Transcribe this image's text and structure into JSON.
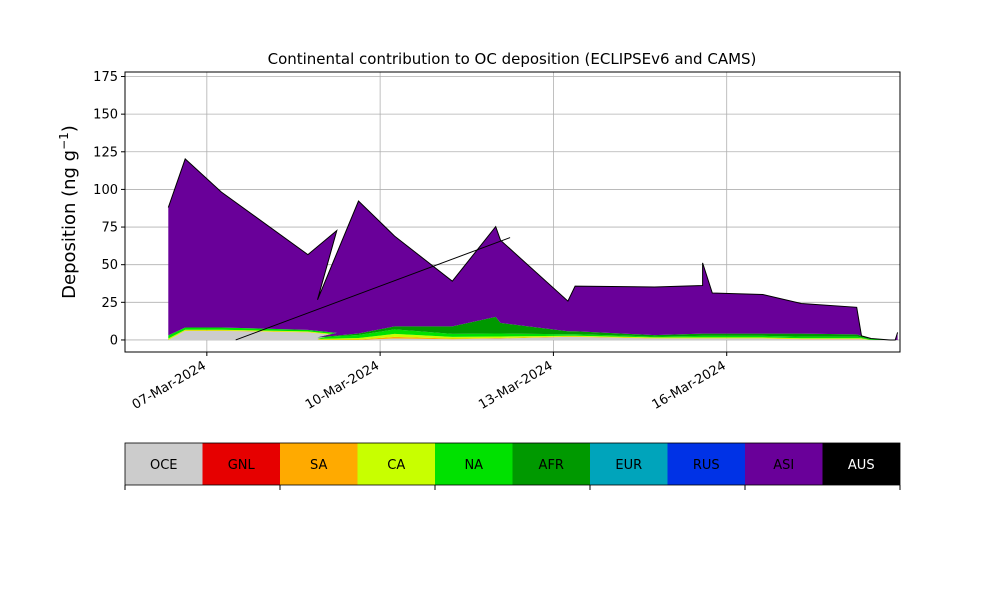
{
  "chart_data": {
    "type": "area",
    "title": "Continental contribution to OC deposition (ECLIPSEv6 and CAMS)",
    "ylabel_main": "Deposition (ng g",
    "ylabel_sup": "−1",
    "ylabel_tail": ")",
    "xlabel": "",
    "ylim": [
      -8,
      178
    ],
    "xlim": [
      "2024-03-05T14:00",
      "2024-03-19T00:00"
    ],
    "grid": true,
    "yticks": [
      0,
      25,
      50,
      75,
      100,
      125,
      150,
      175
    ],
    "xticks": [
      {
        "date": "2024-03-07",
        "label": "07-Mar-2024"
      },
      {
        "date": "2024-03-10",
        "label": "10-Mar-2024"
      },
      {
        "date": "2024-03-13",
        "label": "13-Mar-2024"
      },
      {
        "date": "2024-03-16",
        "label": "16-Mar-2024"
      }
    ],
    "series": [
      {
        "name": "OCE",
        "color": "#cccccc",
        "values": [
          0,
          6,
          6,
          5,
          3,
          0,
          0,
          1,
          0.5,
          1,
          1,
          2,
          2,
          1,
          1,
          1,
          1,
          1,
          0.5,
          0.5,
          0.5,
          0,
          0,
          0,
          0
        ]
      },
      {
        "name": "GNL",
        "color": "#e60000",
        "values": [
          0,
          0,
          0,
          0,
          0,
          0,
          0,
          0,
          0,
          0,
          0,
          0,
          0,
          0,
          0,
          0,
          0,
          0,
          0,
          0,
          0,
          0,
          0,
          0,
          0
        ]
      },
      {
        "name": "SA",
        "color": "#ffaa00",
        "values": [
          0,
          0.3,
          0.3,
          0.2,
          0.2,
          0.2,
          0.3,
          1,
          0.5,
          0.3,
          0.3,
          0.3,
          0.3,
          0.2,
          0.2,
          0.2,
          0.2,
          0.2,
          0.2,
          0.2,
          0.2,
          0,
          0,
          0,
          0
        ]
      },
      {
        "name": "CA",
        "color": "#c8ff00",
        "values": [
          1,
          0.5,
          0.5,
          0.5,
          0.5,
          0.5,
          1,
          2,
          1,
          1,
          1,
          0.5,
          0.5,
          0.5,
          0.5,
          0.5,
          0.5,
          0.5,
          0.5,
          0.5,
          0.5,
          0,
          0,
          0,
          0
        ]
      },
      {
        "name": "NA",
        "color": "#00e100",
        "values": [
          2,
          1.5,
          1.5,
          1,
          1,
          1,
          2,
          3,
          2,
          2,
          2,
          1,
          1,
          0.5,
          1,
          1,
          1,
          1,
          1,
          1,
          0.5,
          0.5,
          0,
          0,
          0
        ]
      },
      {
        "name": "AFR",
        "color": "#009900",
        "values": [
          0,
          0,
          0,
          0,
          0,
          0,
          1,
          2,
          5,
          11,
          7,
          2,
          2,
          1,
          1.5,
          1.5,
          1.5,
          1.5,
          2,
          1.5,
          1,
          0.5,
          0,
          0,
          0
        ]
      },
      {
        "name": "EUR",
        "color": "#00a4bb",
        "values": [
          0,
          0,
          0,
          0,
          0,
          0,
          0,
          0,
          0,
          0,
          0,
          0,
          0,
          0,
          0,
          0,
          0,
          0,
          0,
          0,
          0,
          0,
          0,
          0,
          0
        ]
      },
      {
        "name": "RUS",
        "color": "#0032e6",
        "values": [
          0,
          0,
          0,
          0,
          0,
          0,
          0,
          0,
          0,
          0,
          0,
          0,
          0,
          0,
          0,
          0,
          0,
          0,
          0,
          0,
          0,
          0,
          0,
          0,
          0
        ]
      },
      {
        "name": "ASI",
        "color": "#690099",
        "values": [
          85,
          112,
          90,
          50,
          68,
          25,
          88,
          60,
          30,
          60,
          55,
          20,
          30,
          32,
          32,
          47,
          27,
          26,
          20,
          18,
          0,
          0,
          0,
          0,
          5
        ]
      },
      {
        "name": "AUS",
        "color": "#000000",
        "values": [
          0,
          0,
          0,
          0,
          0,
          0,
          0,
          0,
          0,
          0,
          0,
          0,
          0,
          0,
          0,
          0,
          0,
          0,
          0,
          0,
          0,
          0,
          0,
          0,
          0
        ]
      }
    ],
    "x": [
      "2024-03-06T08:00",
      "2024-03-06T15:00",
      "2024-03-07T06:00",
      "2024-03-08T18:00",
      "2024-03-09T06:00",
      "2024-03-08T22:00",
      "2024-03-09T15:00",
      "2024-03-10T06:00",
      "2024-03-11T06:00",
      "2024-03-12T00:00",
      "2024-03-12T02:00",
      "2024-03-13T06:00",
      "2024-03-13T09:00",
      "2024-03-14T18:00",
      "2024-03-15T14:00",
      "2024-03-15T14:00",
      "2024-03-15T18:00",
      "2024-03-16T15:00",
      "2024-03-17T07:00",
      "2024-03-18T06:00",
      "2024-03-18T08:00",
      "2024-03-18T12:00",
      "2024-03-18T20:00",
      "2024-03-18T22:00",
      "2024-03-18T23:00"
    ],
    "overlay_line": {
      "x": [
        "2024-03-07T12:00",
        "2024-03-12T06:00"
      ],
      "y": [
        0,
        68
      ]
    },
    "legend": {
      "placement": "bottom",
      "entries": [
        {
          "label": "OCE",
          "color": "#cccccc",
          "text_color": "#000000"
        },
        {
          "label": "GNL",
          "color": "#e60000",
          "text_color": "#000000"
        },
        {
          "label": "SA",
          "color": "#ffaa00",
          "text_color": "#000000"
        },
        {
          "label": "CA",
          "color": "#c8ff00",
          "text_color": "#000000"
        },
        {
          "label": "NA",
          "color": "#00e100",
          "text_color": "#000000"
        },
        {
          "label": "AFR",
          "color": "#009900",
          "text_color": "#000000"
        },
        {
          "label": "EUR",
          "color": "#00a4bb",
          "text_color": "#000000"
        },
        {
          "label": "RUS",
          "color": "#0032e6",
          "text_color": "#000000"
        },
        {
          "label": "ASI",
          "color": "#690099",
          "text_color": "#000000"
        },
        {
          "label": "AUS",
          "color": "#000000",
          "text_color": "#ffffff"
        }
      ]
    }
  }
}
